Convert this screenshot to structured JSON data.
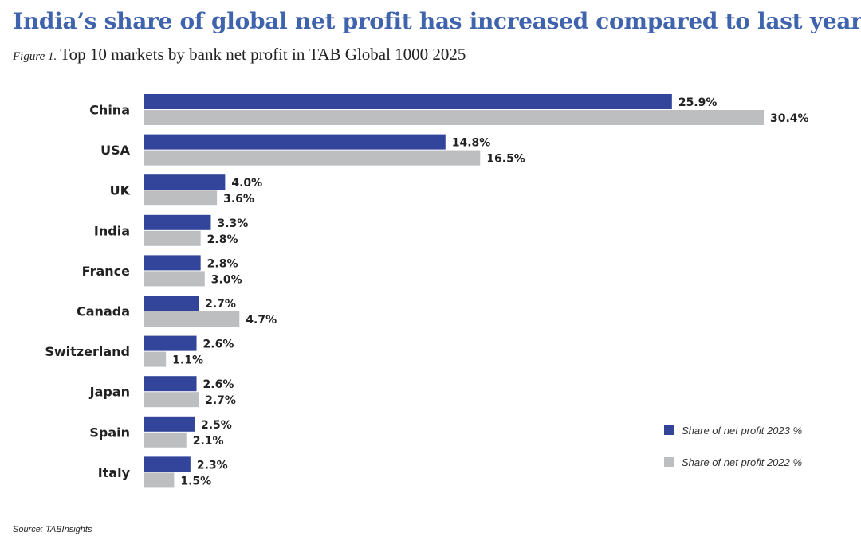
{
  "header": {
    "title": "India’s share of global net profit has increased compared to last year",
    "figure_label": "Figure 1.",
    "subtitle": "Top 10 markets by bank net profit in TAB Global 1000 2025"
  },
  "chart_data": {
    "type": "bar",
    "orientation": "horizontal",
    "categories": [
      "China",
      "USA",
      "UK",
      "India",
      "France",
      "Canada",
      "Switzerland",
      "Japan",
      "Spain",
      "Italy"
    ],
    "series": [
      {
        "name": "Share of net profit 2023 %",
        "color": "#33449b",
        "values": [
          25.9,
          14.8,
          4.0,
          3.3,
          2.8,
          2.7,
          2.6,
          2.6,
          2.5,
          2.3
        ],
        "labels": [
          "25.9%",
          "14.8%",
          "4.0%",
          "3.3%",
          "2.8%",
          "2.7%",
          "2.6%",
          "2.6%",
          "2.5%",
          "2.3%"
        ]
      },
      {
        "name": "Share of net profit 2022 %",
        "color": "#bdbec0",
        "values": [
          30.4,
          16.5,
          3.6,
          2.8,
          3.0,
          4.7,
          1.1,
          2.7,
          2.1,
          1.5
        ],
        "labels": [
          "30.4%",
          "16.5%",
          "3.6%",
          "2.8%",
          "3.0%",
          "4.7%",
          "1.1%",
          "2.7%",
          "2.1%",
          "1.5%"
        ]
      }
    ],
    "xlim": [
      0,
      30.4
    ],
    "grid": false,
    "legend_position": "bottom-right"
  },
  "source": "Source: TABInsights"
}
